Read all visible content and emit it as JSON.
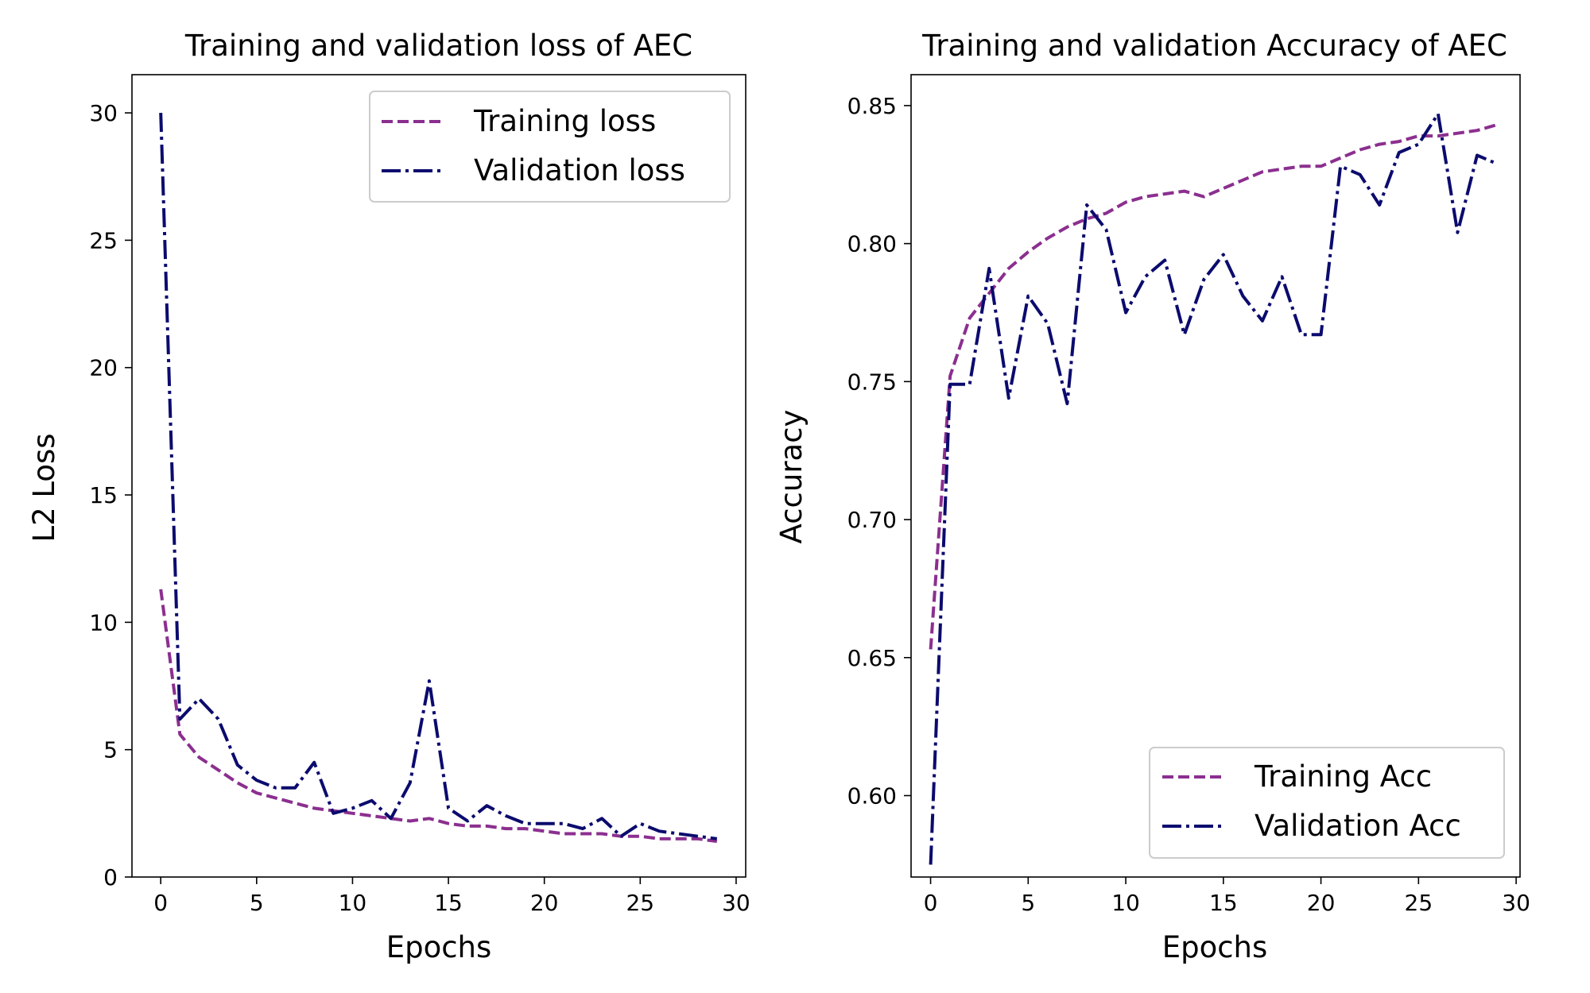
{
  "chart_data": [
    {
      "type": "line",
      "title": "Training and validation loss of AEC",
      "xlabel": "Epochs",
      "ylabel": "L2 Loss",
      "xlim": [
        -1.5,
        30.5
      ],
      "ylim": [
        0,
        31.5
      ],
      "xticks": [
        0,
        5,
        10,
        15,
        20,
        25,
        30
      ],
      "yticks": [
        0,
        5,
        10,
        15,
        20,
        25,
        30
      ],
      "grid": false,
      "legend_position": "top-right",
      "x": [
        0,
        1,
        2,
        3,
        4,
        5,
        6,
        7,
        8,
        9,
        10,
        11,
        12,
        13,
        14,
        15,
        16,
        17,
        18,
        19,
        20,
        21,
        22,
        23,
        24,
        25,
        26,
        27,
        28,
        29
      ],
      "series": [
        {
          "name": "Training loss",
          "style": "dashed",
          "color": "#8B2F8F",
          "values": [
            11.3,
            5.6,
            4.7,
            4.2,
            3.7,
            3.3,
            3.1,
            2.9,
            2.7,
            2.6,
            2.5,
            2.4,
            2.3,
            2.2,
            2.3,
            2.1,
            2.0,
            2.0,
            1.9,
            1.9,
            1.8,
            1.7,
            1.7,
            1.7,
            1.6,
            1.6,
            1.5,
            1.5,
            1.5,
            1.4
          ]
        },
        {
          "name": "Validation loss",
          "style": "dashdot",
          "color": "#0B0B6E",
          "values": [
            30.0,
            6.2,
            7.0,
            6.2,
            4.4,
            3.8,
            3.5,
            3.5,
            4.5,
            2.5,
            2.7,
            3.0,
            2.3,
            3.7,
            7.7,
            2.7,
            2.2,
            2.8,
            2.4,
            2.1,
            2.1,
            2.1,
            1.9,
            2.3,
            1.6,
            2.1,
            1.8,
            1.7,
            1.6,
            1.5
          ]
        }
      ]
    },
    {
      "type": "line",
      "title": "Training and validation Accuracy of AEC",
      "xlabel": "Epochs",
      "ylabel": "Accuracy",
      "xlim": [
        -1.0,
        30.2
      ],
      "ylim": [
        0.5705,
        0.8612
      ],
      "xticks": [
        0,
        5,
        10,
        15,
        20,
        25,
        30
      ],
      "yticks": [
        0.6,
        0.65,
        0.7,
        0.75,
        0.8,
        0.85
      ],
      "ytick_labels": [
        "0.60",
        "0.65",
        "0.70",
        "0.75",
        "0.80",
        "0.85"
      ],
      "grid": false,
      "legend_position": "bottom-right",
      "x": [
        0,
        1,
        2,
        3,
        4,
        5,
        6,
        7,
        8,
        9,
        10,
        11,
        12,
        13,
        14,
        15,
        16,
        17,
        18,
        19,
        20,
        21,
        22,
        23,
        24,
        25,
        26,
        27,
        28,
        29
      ],
      "series": [
        {
          "name": "Training Acc",
          "style": "dashed",
          "color": "#8B2F8F",
          "values": [
            0.653,
            0.752,
            0.773,
            0.782,
            0.791,
            0.797,
            0.802,
            0.806,
            0.809,
            0.811,
            0.815,
            0.817,
            0.818,
            0.819,
            0.817,
            0.82,
            0.823,
            0.826,
            0.827,
            0.828,
            0.828,
            0.831,
            0.834,
            0.836,
            0.837,
            0.839,
            0.839,
            0.84,
            0.841,
            0.843
          ]
        },
        {
          "name": "Validation Acc",
          "style": "dashdot",
          "color": "#0B0B6E",
          "values": [
            0.575,
            0.749,
            0.749,
            0.791,
            0.744,
            0.781,
            0.771,
            0.742,
            0.814,
            0.805,
            0.775,
            0.788,
            0.794,
            0.767,
            0.787,
            0.796,
            0.781,
            0.772,
            0.788,
            0.767,
            0.767,
            0.828,
            0.825,
            0.814,
            0.833,
            0.836,
            0.847,
            0.804,
            0.832,
            0.829
          ]
        }
      ]
    }
  ]
}
